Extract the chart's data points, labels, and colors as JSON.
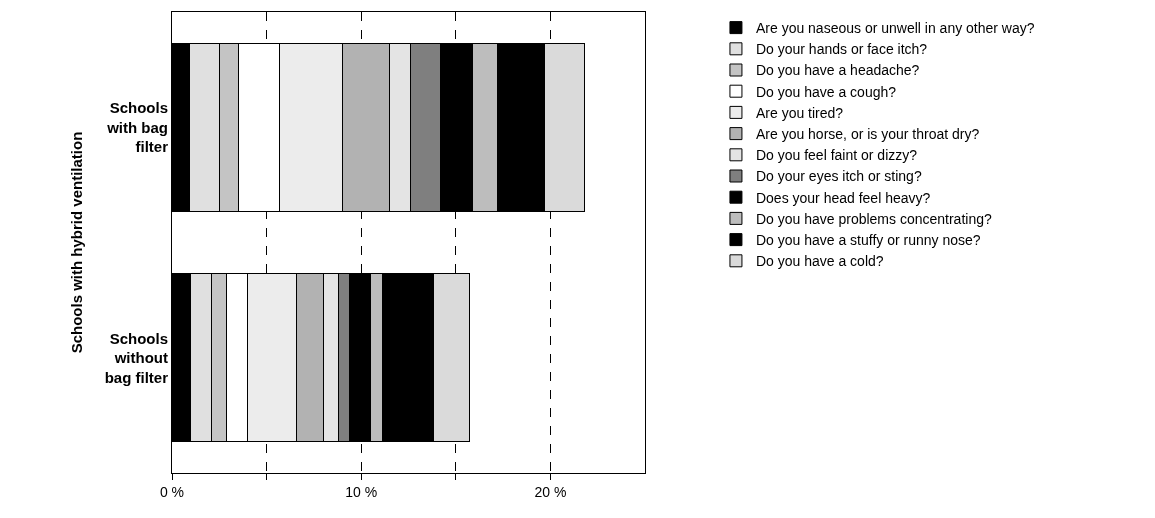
{
  "chart_data": {
    "type": "bar",
    "orientation": "horizontal",
    "stacked": true,
    "ylabel": "Schools with hybrid ventilation",
    "categories": [
      "Schools with bag filter",
      "Schools without bag filter"
    ],
    "series": [
      {
        "name": "Are you naseous or unwell in any other way?",
        "color": "#000000",
        "values": [
          0.9,
          1.0
        ]
      },
      {
        "name": "Do your hands or face itch?",
        "color": "#e0e0e0",
        "values": [
          1.6,
          1.1
        ]
      },
      {
        "name": "Do you have a headache?",
        "color": "#c4c4c4",
        "values": [
          1.0,
          0.8
        ]
      },
      {
        "name": "Do you have a cough?",
        "color": "#ffffff",
        "values": [
          2.2,
          1.1
        ]
      },
      {
        "name": "Are you tired?",
        "color": "#ececec",
        "values": [
          3.3,
          2.6
        ]
      },
      {
        "name": "Are you horse, or is your throat dry?",
        "color": "#b2b2b2",
        "values": [
          2.5,
          1.4
        ]
      },
      {
        "name": "Do you feel faint or dizzy?",
        "color": "#e4e4e4",
        "values": [
          1.1,
          0.8
        ]
      },
      {
        "name": "Do your eyes itch or sting?",
        "color": "#7f7f7f",
        "values": [
          1.6,
          0.6
        ]
      },
      {
        "name": "Does your head feel heavy?",
        "color": "#000000",
        "values": [
          1.7,
          1.1
        ]
      },
      {
        "name": "Do you have problems concentrating?",
        "color": "#bdbdbd",
        "values": [
          1.3,
          0.6
        ]
      },
      {
        "name": "Do you have a stuffy or runny nose?",
        "color": "#000000",
        "values": [
          2.5,
          2.7
        ]
      },
      {
        "name": "Do you have a cold?",
        "color": "#dadada",
        "values": [
          2.1,
          1.9
        ]
      }
    ],
    "xlim": [
      0,
      25
    ],
    "xticks": [
      {
        "value": 0,
        "label": "0 %"
      },
      {
        "value": 5,
        "label": null
      },
      {
        "value": 10,
        "label": "10 %"
      },
      {
        "value": 15,
        "label": null
      },
      {
        "value": 20,
        "label": "20 %"
      }
    ],
    "grid": "x",
    "legend": "right"
  }
}
